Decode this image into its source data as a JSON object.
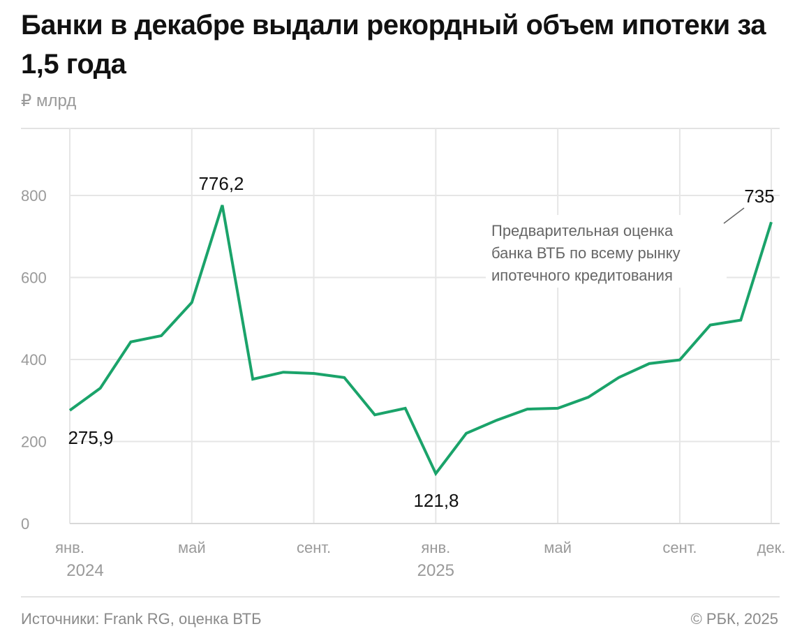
{
  "title": "Банки в декабре выдали рекордный объем ипотеки за 1,5 года",
  "unit": "₽ млрд",
  "footer": {
    "source": "Источники: Frank RG, оценка ВТБ",
    "copyright": "© РБК, 2025"
  },
  "chart_data": {
    "type": "line",
    "title": "Банки в декабре выдали рекордный объем ипотеки за 1,5 года",
    "ylabel": "₽ млрд",
    "ylim": [
      0,
      900
    ],
    "yticks": [
      0,
      200,
      400,
      600,
      800
    ],
    "grid": true,
    "line_color": "#1aa36a",
    "x": [
      "2024-01",
      "2024-02",
      "2024-03",
      "2024-04",
      "2024-05",
      "2024-06",
      "2024-07",
      "2024-08",
      "2024-09",
      "2024-10",
      "2024-11",
      "2024-12",
      "2025-01",
      "2025-02",
      "2025-03",
      "2025-04",
      "2025-05",
      "2025-06",
      "2025-07",
      "2025-08",
      "2025-09",
      "2025-10",
      "2025-11",
      "2025-12"
    ],
    "values": [
      275.9,
      330,
      443,
      458,
      539,
      776.2,
      352,
      369,
      366,
      356,
      265,
      281,
      121.8,
      220,
      252,
      279,
      281,
      308,
      356,
      390,
      399,
      484,
      496,
      735
    ],
    "xticks": [
      {
        "index": 0,
        "label": "янв.",
        "year": "2024"
      },
      {
        "index": 4,
        "label": "май",
        "year": ""
      },
      {
        "index": 8,
        "label": "сент.",
        "year": ""
      },
      {
        "index": 12,
        "label": "янв.",
        "year": "2025"
      },
      {
        "index": 16,
        "label": "май",
        "year": ""
      },
      {
        "index": 20,
        "label": "сент.",
        "year": ""
      },
      {
        "index": 23,
        "label": "дек.",
        "year": ""
      }
    ],
    "data_labels": [
      {
        "index": 0,
        "text": "275,9"
      },
      {
        "index": 5,
        "text": "776,2"
      },
      {
        "index": 12,
        "text": "121,8"
      },
      {
        "index": 23,
        "text": "735"
      }
    ],
    "annotation": {
      "index": 23,
      "lines": [
        "Предварительная оценка",
        "банка ВТБ по всему рынку",
        "ипотечного кредитования"
      ]
    }
  }
}
